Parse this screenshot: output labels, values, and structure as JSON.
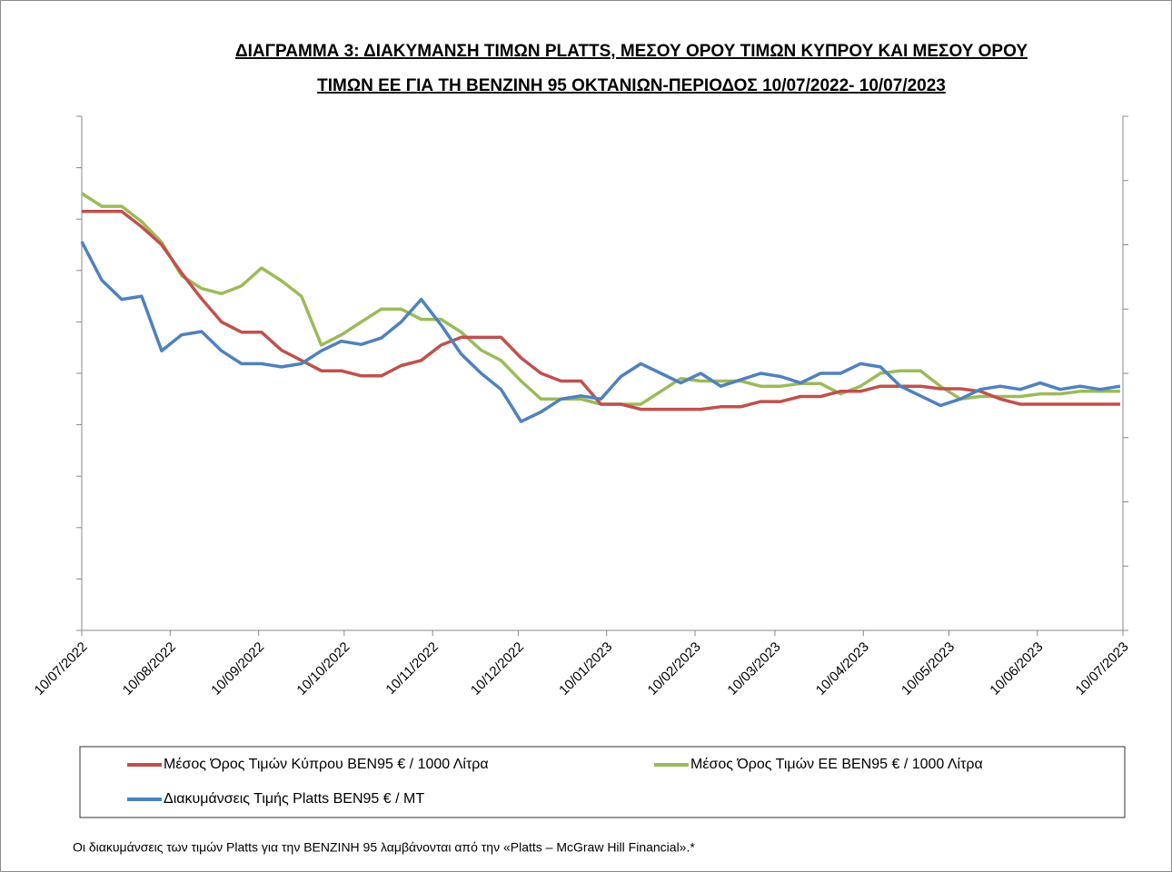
{
  "chart_data": {
    "type": "line",
    "title": [
      "ΔΙΑΓΡΑΜΜΑ 3: ΔΙΑΚΥΜΑΝΣΗ ΤΙΜΩΝ PLATTS, ΜΕΣΟΥ ΟΡΟΥ ΤΙΜΩΝ ΚΥΠΡΟΥ ΚΑΙ ΜΕΣΟΥ ΟΡΟΥ",
      "ΤΙΜΩΝ ΕΕ ΓΙΑ ΤΗ ΒΕΝΖΙΝΗ 95 ΟΚΤΑΝΙΩΝ-ΠΕΡΙΟΔΟΣ  10/07/2022- 10/07/2023"
    ],
    "note": "Οι διακυμάνσεις των τιμών Platts για την ΒΕΝΖΙΝΗ 95 λαμβάνονται από την «Platts – McGraw Hill Financial».*",
    "x": [
      "10/07/2022",
      "17/07/2022",
      "24/07/2022",
      "31/07/2022",
      "07/08/2022",
      "14/08/2022",
      "21/08/2022",
      "28/08/2022",
      "04/09/2022",
      "11/09/2022",
      "18/09/2022",
      "25/09/2022",
      "02/10/2022",
      "09/10/2022",
      "16/10/2022",
      "23/10/2022",
      "30/10/2022",
      "06/11/2022",
      "13/11/2022",
      "20/11/2022",
      "27/11/2022",
      "04/12/2022",
      "11/12/2022",
      "18/12/2022",
      "25/12/2022",
      "01/01/2023",
      "08/01/2023",
      "15/01/2023",
      "22/01/2023",
      "29/01/2023",
      "05/02/2023",
      "12/02/2023",
      "19/02/2023",
      "26/02/2023",
      "05/03/2023",
      "12/03/2023",
      "19/03/2023",
      "26/03/2023",
      "02/04/2023",
      "09/04/2023",
      "16/04/2023",
      "23/04/2023",
      "30/04/2023",
      "07/05/2023",
      "14/05/2023",
      "21/05/2023",
      "28/05/2023",
      "04/06/2023",
      "11/06/2023",
      "18/06/2023",
      "25/06/2023",
      "02/07/2023",
      "09/07/2023"
    ],
    "xlim": [
      "10/07/2022",
      "10/07/2023"
    ],
    "xticks": [
      "10/07/2022",
      "10/08/2022",
      "10/09/2022",
      "10/10/2022",
      "10/11/2022",
      "10/12/2022",
      "10/01/2023",
      "10/02/2023",
      "10/03/2023",
      "10/04/2023",
      "10/05/2023",
      "10/06/2023",
      "10/07/2023"
    ],
    "ylim": [
      0,
      2000
    ],
    "yticks": [
      0,
      200,
      400,
      600,
      800,
      1000,
      1200,
      1400,
      1600,
      1800,
      2000
    ],
    "y2lim": [
      0,
      1600
    ],
    "y2ticks": [
      0,
      200,
      400,
      600,
      800,
      1000,
      1200,
      1400,
      1600
    ],
    "legend": "bottom",
    "series": [
      {
        "name": "Μέσος Όρος Τιμών Κύπρου ΒΕΝ95 € / 1000 Λίτρα",
        "color": "#c0504d",
        "values": [
          1630,
          1630,
          1630,
          1570,
          1500,
          1390,
          1290,
          1200,
          1160,
          1160,
          1090,
          1050,
          1010,
          1010,
          990,
          990,
          1030,
          1050,
          1110,
          1140,
          1140,
          1140,
          1060,
          1000,
          970,
          970,
          880,
          880,
          860,
          860,
          860,
          860,
          870,
          870,
          890,
          890,
          910,
          910,
          930,
          930,
          950,
          950,
          950,
          940,
          940,
          930,
          900,
          880,
          880,
          880,
          880,
          880,
          880
        ]
      },
      {
        "name": "Μέσος Όρος Τιμών ΕΕ ΒΕΝ95 € / 1000 Λίτρα",
        "color": "#9bbb59",
        "values": [
          1700,
          1650,
          1650,
          1590,
          1510,
          1380,
          1330,
          1310,
          1340,
          1410,
          1360,
          1300,
          1110,
          1150,
          1200,
          1250,
          1250,
          1210,
          1210,
          1160,
          1090,
          1050,
          970,
          900,
          900,
          900,
          880,
          880,
          880,
          930,
          980,
          970,
          970,
          970,
          950,
          950,
          960,
          960,
          920,
          950,
          1000,
          1010,
          1010,
          950,
          900,
          910,
          910,
          910,
          920,
          920,
          930,
          930,
          930
        ]
      },
      {
        "name": "Διακυμάνσεις Τιμής Platts ΒΕΝ95 € / ΜΤ",
        "color": "#4f81bd",
        "axis": "y2",
        "values": [
          1210,
          1090,
          1030,
          1040,
          870,
          920,
          930,
          870,
          830,
          830,
          820,
          830,
          870,
          900,
          890,
          910,
          960,
          1030,
          950,
          860,
          800,
          750,
          650,
          680,
          720,
          730,
          720,
          790,
          830,
          800,
          770,
          800,
          760,
          780,
          800,
          790,
          770,
          800,
          800,
          830,
          820,
          760,
          730,
          700,
          720,
          750,
          760,
          750,
          770,
          750,
          760,
          750,
          760
        ]
      }
    ]
  }
}
